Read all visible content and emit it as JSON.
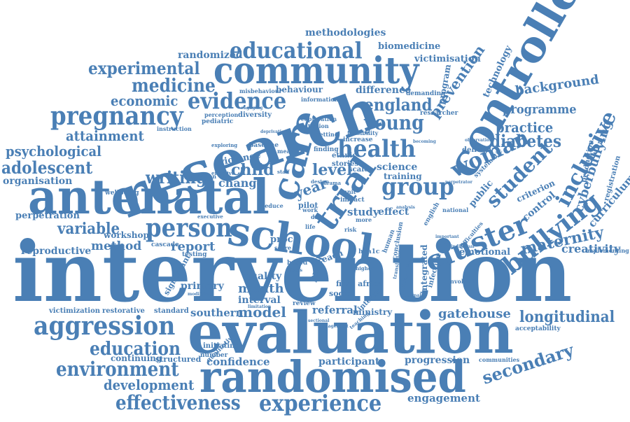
{
  "color": "#4a7fb5",
  "words": {
    "intervention": "intervention",
    "research": "research",
    "evaluation": "evaluation",
    "antenatal": "antenatal",
    "randomised": "randomised",
    "controlled": "controlled",
    "community": "community",
    "school": "school",
    "care": "care",
    "trial": "trial",
    "aggression": "aggression",
    "pregnancy": "pregnancy",
    "educational": "educational",
    "experience": "experience",
    "effectiveness": "effectiveness",
    "person": "person",
    "cluster": "cluster",
    "evidence": "evidence",
    "health": "health",
    "group": "group",
    "bullying": "bullying",
    "environment": "environment",
    "education": "education",
    "development": "development",
    "longitudinal": "longitudinal",
    "woman": "woman",
    "student": "student",
    "inclusive": "inclusive",
    "young": "young",
    "england": "england",
    "medicine": "medicine",
    "experimental": "experimental",
    "adolescent": "adolescent",
    "psychological": "psychological",
    "attainment": "attainment",
    "economic": "economic",
    "writing": "writing",
    "variable": "variable",
    "maternity": "maternity",
    "secondary": "secondary",
    "diabetes": "diabetes",
    "practice": "practice",
    "programme": "programme",
    "background": "background",
    "methodologies": "methodologies",
    "randomized": "randomized",
    "biomedicine": "biomedicine",
    "victimisation": "victimisation",
    "prevention": "prevention",
    "technology": "technology",
    "cyberbullying": "cyberbullying",
    "curriculum": "curriculum",
    "creativity": "creativity",
    "organisation": "organisation",
    "perpetration": "perpetration",
    "reproductive": "reproductive",
    "method": "method",
    "report": "report",
    "workshop": "workshop",
    "gatehouse": "gatehouse",
    "engagement": "engagement",
    "progression": "progression",
    "participant": "participant",
    "confidence": "confidence",
    "southern": "southern",
    "model": "model",
    "month": "month",
    "interval": "interval",
    "quality": "quality",
    "primary": "primary",
    "victimization": "victimization",
    "restorative": "restorative",
    "continuing": "continuing",
    "structured": "structured",
    "child": "child",
    "level": "level",
    "year": "year",
    "change": "change",
    "violence": "violence",
    "difference": "difference",
    "behaviour": "behaviour",
    "science": "science",
    "training": "training",
    "study": "study",
    "effect": "effect",
    "emotional": "emotional",
    "referral": "referral",
    "ministry": "ministry",
    "final africa": "final africa",
    "social": "social",
    "pupil": "pupil",
    "proc": "proc",
    "scale": "scale",
    "pilot": "pilot",
    "stories": "stories",
    "ethnic": "ethnic",
    "finding": "finding",
    "increase": "increase",
    "diversity": "diversity",
    "pediatric": "pediatric",
    "perception": "perception",
    "instruction": "instruction",
    "misbehaviour": "misbehaviour",
    "wellbeing": "wellbeing",
    "foundation": "foundation",
    "baseline": "baseline",
    "cascade": "cascade",
    "number": "number",
    "significant": "significant",
    "standard": "standard",
    "initiating": "initiating",
    "qualitative": "qualitative",
    "integrated": "integrated",
    "interim": "interim",
    "delivery": "delivery",
    "systematic": "systematic",
    "public": "public",
    "control": "control",
    "criterion": "criterion",
    "production": "production",
    "registration": "registration",
    "implementing": "implementing",
    "infection": "infection",
    "acceptability": "acceptability",
    "communities": "communities",
    "national": "national",
    "english": "english",
    "difficulties": "difficulties",
    "involved": "involved",
    "reach": "reach",
    "review": "review",
    "human": "human",
    "conclusion": "conclusion",
    "program": "program",
    "demanding": "demanding",
    "researcher": "researcher",
    "information": "information",
    "exploration": "exploration",
    "initiation": "initiation",
    "setting": "setting",
    "feasibility": "feasibility",
    "exploring": "exploring",
    "measure": "measure",
    "design": "design",
    "impact": "impact",
    "unit": "unit",
    "work": "work",
    "data": "data",
    "life": "life",
    "risk": "risk",
    "testing": "testing",
    "based": "based",
    "reduce": "reduce",
    "executive": "executive",
    "effective": "effective",
    "staff": "staff",
    "score": "score",
    "higher": "higher",
    "more": "more",
    "analysis": "analysis",
    "sectional": "sectional",
    "modifying": "modifying",
    "limitation": "limitation",
    "becoming": "becoming",
    "observation": "observation",
    "deprivation": "deprivation",
    "drama": "drama",
    "engaging": "engaging",
    "perpetrator": "perpetrator",
    "management": "management",
    "focus": "focus",
    "external": "external",
    "teaching": "teaching",
    "translation": "translation",
    "component": "component",
    "individual": "individual",
    "important": "important",
    "hba1c": "hba1c"
  }
}
